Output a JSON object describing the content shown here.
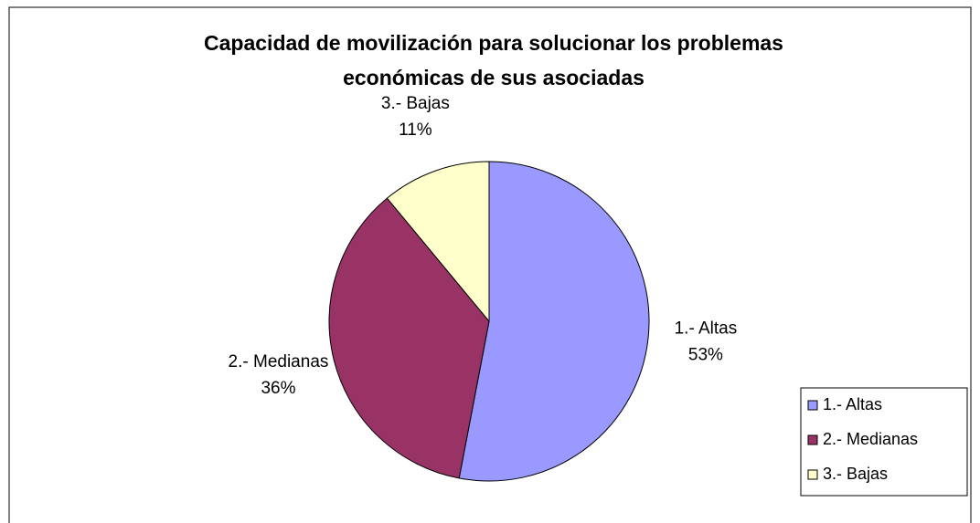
{
  "chart_data": {
    "type": "pie",
    "title": [
      "Capacidad de movilización para solucionar los problemas",
      "económicas de sus asociadas"
    ],
    "categories": [
      "1.- Altas",
      "2.- Medianas",
      "3.- Bajas"
    ],
    "values": [
      53,
      36,
      11
    ],
    "value_labels": [
      "53%",
      "36%",
      "11%"
    ],
    "colors": [
      "#9999ff",
      "#993366",
      "#ffffcc"
    ],
    "legend": "right"
  }
}
